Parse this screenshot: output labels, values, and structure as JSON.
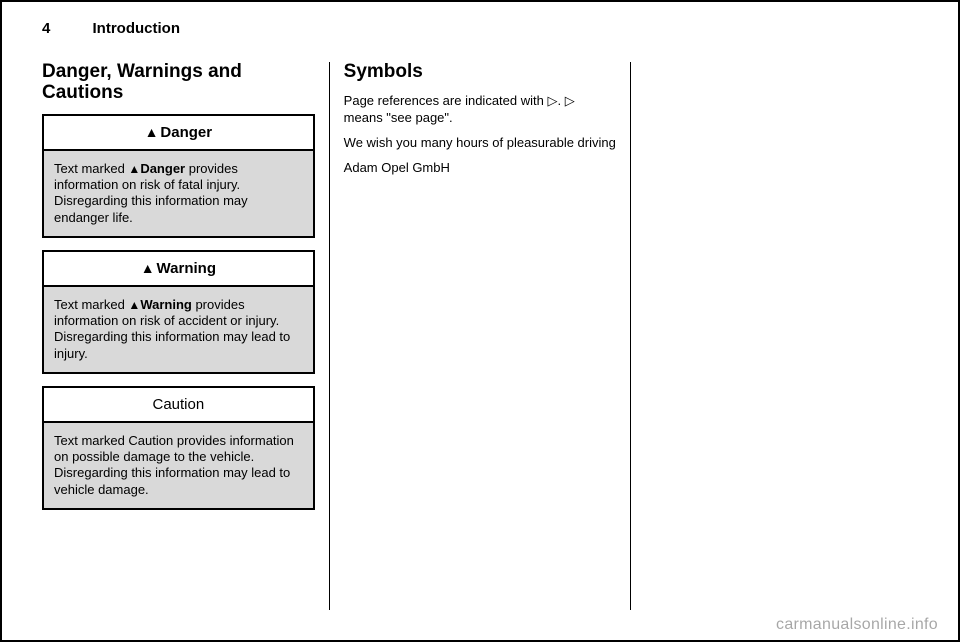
{
  "header": {
    "page_number": "4",
    "section": "Introduction"
  },
  "col1": {
    "heading": "Danger, Warnings and Cautions",
    "danger_box": {
      "icon": "▲",
      "title": "Danger",
      "body_prefix": "Text marked ",
      "body_icon": "▲",
      "body_label": "Danger",
      "body_rest": " provides information on risk of fatal injury. Disregarding this information may endanger life."
    },
    "warning_box": {
      "icon": "▲",
      "title": "Warning",
      "body_prefix": "Text marked ",
      "body_icon": "▲",
      "body_label": "Warning",
      "body_rest": " provides information on risk of accident or injury. Disregarding this information may lead to injury."
    },
    "caution_box": {
      "title": "Caution",
      "body": "Text marked Caution provides information on possible damage to the vehicle. Disregarding this information may lead to vehicle damage."
    }
  },
  "col2": {
    "heading": "Symbols",
    "p1_a": "Page references are indicated with ",
    "p1_sym": "▷",
    "p1_b": ". ",
    "p1_sym2": "▷",
    "p1_c": " means \"see page\".",
    "p2": "We wish you many hours of pleasurable driving",
    "p3": "Adam Opel GmbH"
  },
  "watermark": "carmanualsonline.info"
}
